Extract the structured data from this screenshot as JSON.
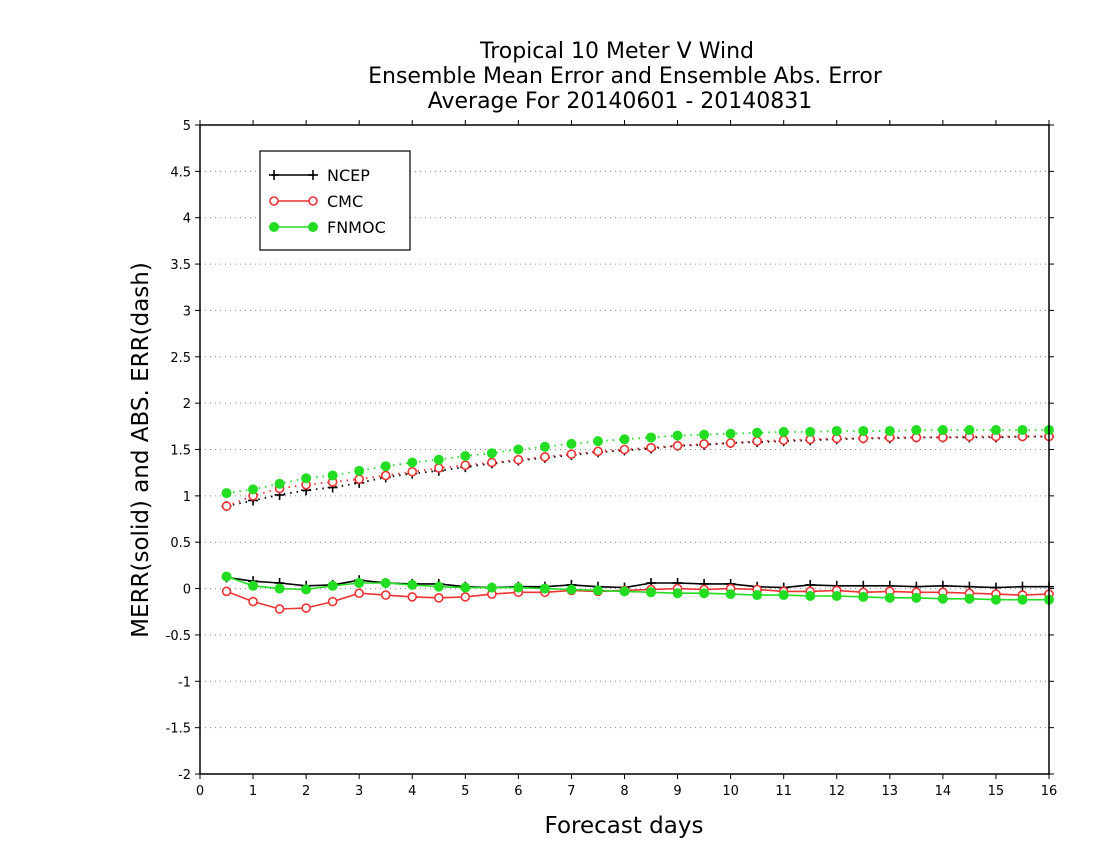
{
  "chart_data": {
    "type": "line",
    "title_lines": [
      "Tropical 10 Meter V Wind",
      "Ensemble Mean Error and Ensemble Abs. Error",
      "Average For 20140601 - 20140831"
    ],
    "xlabel": "Forecast days",
    "ylabel": "MERR(solid) and ABS. ERR(dash)",
    "xlim": [
      0,
      16
    ],
    "ylim": [
      -2,
      5
    ],
    "x_ticks": [
      0,
      1,
      2,
      3,
      4,
      5,
      6,
      7,
      8,
      9,
      10,
      11,
      12,
      13,
      14,
      15,
      16
    ],
    "y_ticks": [
      -2,
      -1.5,
      -1,
      -0.5,
      0,
      0.5,
      1,
      1.5,
      2,
      2.5,
      3,
      3.5,
      4,
      4.5,
      5
    ],
    "y_tick_labels": [
      "-2",
      "-1.5",
      "-1",
      "-0.5",
      "0",
      "0.5",
      "1",
      "1.5",
      "2",
      "2.5",
      "3",
      "3.5",
      "4",
      "4.5",
      "5"
    ],
    "grid": "horizontal dotted",
    "legend_position": "top-left",
    "x": [
      0.5,
      1,
      1.5,
      2,
      2.5,
      3,
      3.5,
      4,
      4.5,
      5,
      5.5,
      6,
      6.5,
      7,
      7.5,
      8,
      8.5,
      9,
      9.5,
      10,
      10.5,
      11,
      11.5,
      12,
      12.5,
      13,
      13.5,
      14,
      14.5,
      15,
      15.5,
      16
    ],
    "series": [
      {
        "name": "NCEP",
        "color": "#000000",
        "marker": "plus",
        "merr": [
          0.12,
          0.08,
          0.06,
          0.03,
          0.04,
          0.09,
          0.06,
          0.05,
          0.05,
          0.02,
          0.01,
          0.02,
          0.02,
          0.04,
          0.02,
          0.01,
          0.06,
          0.06,
          0.05,
          0.05,
          0.02,
          0.01,
          0.04,
          0.03,
          0.03,
          0.03,
          0.02,
          0.03,
          0.02,
          0.01,
          0.02,
          0.02
        ],
        "abs_err": [
          0.89,
          0.95,
          1.01,
          1.06,
          1.09,
          1.14,
          1.2,
          1.24,
          1.27,
          1.31,
          1.35,
          1.38,
          1.41,
          1.44,
          1.47,
          1.49,
          1.51,
          1.54,
          1.55,
          1.57,
          1.58,
          1.59,
          1.6,
          1.61,
          1.62,
          1.62,
          1.63,
          1.63,
          1.63,
          1.63,
          1.64,
          1.64
        ]
      },
      {
        "name": "CMC",
        "color": "#ee3333",
        "marker": "open-circle",
        "merr": [
          -0.03,
          -0.14,
          -0.22,
          -0.21,
          -0.14,
          -0.05,
          -0.07,
          -0.09,
          -0.1,
          -0.09,
          -0.06,
          -0.04,
          -0.04,
          -0.02,
          -0.03,
          -0.02,
          -0.01,
          0.0,
          -0.01,
          0.0,
          -0.01,
          -0.03,
          -0.03,
          -0.02,
          -0.04,
          -0.03,
          -0.04,
          -0.04,
          -0.05,
          -0.06,
          -0.07,
          -0.06
        ],
        "abs_err": [
          0.89,
          1.0,
          1.08,
          1.12,
          1.15,
          1.18,
          1.22,
          1.26,
          1.3,
          1.33,
          1.36,
          1.39,
          1.42,
          1.45,
          1.48,
          1.5,
          1.52,
          1.54,
          1.56,
          1.57,
          1.59,
          1.6,
          1.61,
          1.62,
          1.62,
          1.63,
          1.63,
          1.63,
          1.64,
          1.64,
          1.64,
          1.64
        ]
      },
      {
        "name": "FNMOC",
        "color": "#22dd22",
        "marker": "filled-circle",
        "merr": [
          0.13,
          0.03,
          0.0,
          -0.01,
          0.03,
          0.06,
          0.06,
          0.04,
          0.02,
          0.01,
          0.01,
          0.01,
          0.0,
          -0.01,
          -0.02,
          -0.03,
          -0.04,
          -0.05,
          -0.05,
          -0.06,
          -0.07,
          -0.07,
          -0.08,
          -0.08,
          -0.09,
          -0.1,
          -0.1,
          -0.11,
          -0.11,
          -0.12,
          -0.12,
          -0.12
        ],
        "abs_err": [
          1.03,
          1.07,
          1.13,
          1.19,
          1.22,
          1.27,
          1.32,
          1.36,
          1.39,
          1.43,
          1.46,
          1.5,
          1.53,
          1.56,
          1.59,
          1.61,
          1.63,
          1.65,
          1.66,
          1.67,
          1.68,
          1.69,
          1.69,
          1.7,
          1.7,
          1.7,
          1.71,
          1.71,
          1.71,
          1.71,
          1.71,
          1.71
        ]
      }
    ]
  }
}
